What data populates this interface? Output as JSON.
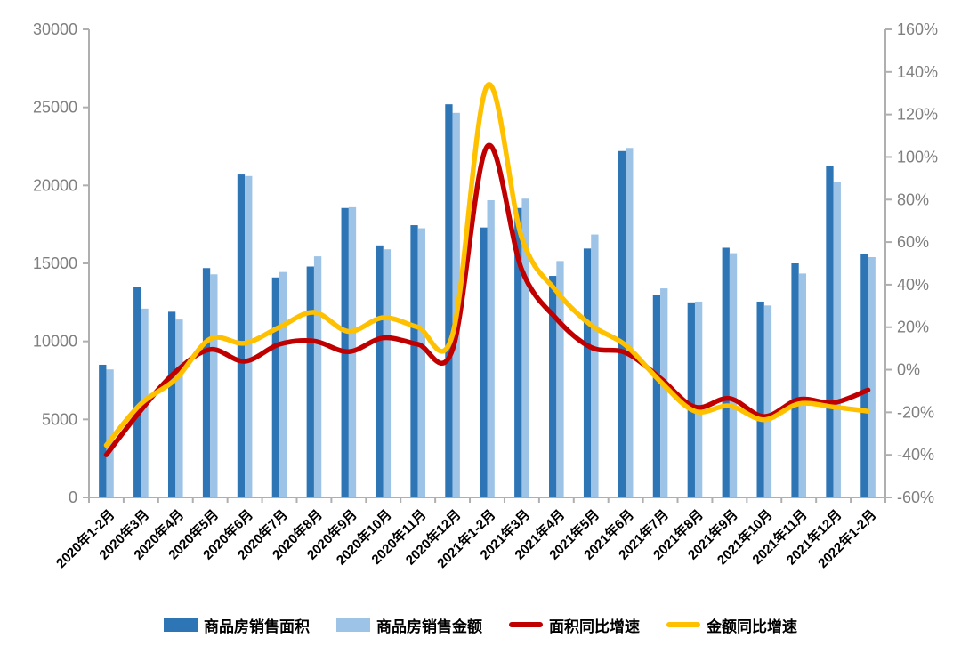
{
  "chart_data": {
    "type": "combo-bar-line",
    "title": "",
    "grid": false,
    "legend_position": "bottom",
    "categories": [
      "2020年1-2月",
      "2020年3月",
      "2020年4月",
      "2020年5月",
      "2020年6月",
      "2020年7月",
      "2020年8月",
      "2020年9月",
      "2020年10月",
      "2020年11月",
      "2020年12月",
      "2021年1-2月",
      "2021年3月",
      "2021年4月",
      "2021年5月",
      "2021年6月",
      "2021年7月",
      "2021年8月",
      "2021年9月",
      "2021年10月",
      "2021年11月",
      "2021年12月",
      "2022年1-2月"
    ],
    "left_axis": {
      "min": 0,
      "max": 30000,
      "step": 5000,
      "labels": [
        "30000",
        "25000",
        "20000",
        "15000",
        "10000",
        "5000",
        "0"
      ]
    },
    "right_axis": {
      "min": -60,
      "max": 160,
      "step": 20,
      "labels": [
        "160%",
        "140%",
        "120%",
        "100%",
        "80%",
        "60%",
        "40%",
        "20%",
        "0%",
        "-20%",
        "-40%",
        "-60%"
      ]
    },
    "series": [
      {
        "name": "商品房销售面积",
        "type": "bar",
        "axis": "left",
        "color": "#2E75B6",
        "values": [
          8500,
          13500,
          11900,
          14700,
          20700,
          14100,
          14800,
          18550,
          16150,
          17450,
          25200,
          17300,
          18550,
          14200,
          15950,
          22200,
          12950,
          12500,
          16000,
          12550,
          15000,
          21250,
          15600
        ]
      },
      {
        "name": "商品房销售金额",
        "type": "bar",
        "axis": "left",
        "color": "#9DC3E6",
        "values": [
          8200,
          12100,
          11400,
          14300,
          20600,
          14450,
          15450,
          18600,
          15900,
          17250,
          24650,
          19050,
          19150,
          15150,
          16850,
          22400,
          13400,
          12550,
          15650,
          12300,
          14350,
          20200,
          15400
        ]
      },
      {
        "name": "面积同比增速",
        "type": "line",
        "axis": "right",
        "color": "#C00000",
        "values": [
          -40,
          -19,
          -1,
          9.5,
          4,
          12,
          13.5,
          8.5,
          15,
          12,
          9.5,
          105,
          47,
          24,
          10.5,
          8,
          -4,
          -17.5,
          -13.5,
          -22,
          -14,
          -15.5,
          -9.5
        ]
      },
      {
        "name": "金额同比增速",
        "type": "line",
        "axis": "right",
        "color": "#FFC000",
        "values": [
          -35.5,
          -16,
          -4.5,
          14.5,
          12.5,
          20,
          27,
          18,
          24.5,
          20,
          16.5,
          133.5,
          62,
          37,
          21,
          11.5,
          -5.5,
          -19.5,
          -17,
          -23.5,
          -16,
          -17.5,
          -19.5
        ]
      }
    ],
    "axis_style": {
      "line_color": "#AFAFAF",
      "tick_label_color": "#7F7F7F",
      "category_label_color": "#000000"
    }
  }
}
